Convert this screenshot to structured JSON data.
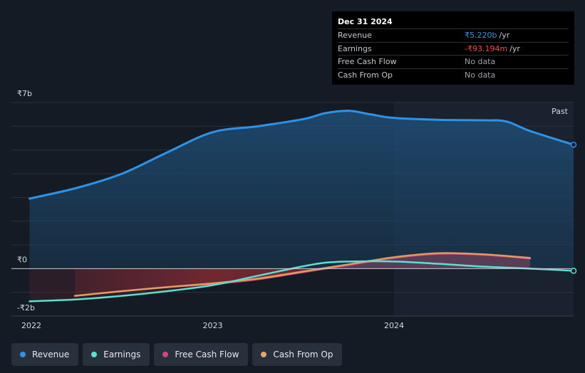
{
  "chart_data": {
    "type": "area",
    "title": "",
    "past_label": "Past",
    "x_ticks": [
      "2022",
      "2023",
      "2024"
    ],
    "y_ticks": [
      {
        "label": "₹7b",
        "value": 7
      },
      {
        "label": "₹0",
        "value": 0
      },
      {
        "label": "-₹2b",
        "value": -2
      }
    ],
    "ylim": [
      -2,
      7
    ],
    "xlim": [
      2021.89,
      2024.99
    ],
    "past_start": 2024.0,
    "series": [
      {
        "name": "Revenue",
        "color": "#2e93e6",
        "x": [
          2021.99,
          2022.25,
          2022.5,
          2022.75,
          2023.0,
          2023.25,
          2023.5,
          2023.62,
          2023.75,
          2023.87,
          2024.0,
          2024.25,
          2024.5,
          2024.62,
          2024.75,
          2024.99
        ],
        "values": [
          2.95,
          3.4,
          4.0,
          4.9,
          5.75,
          6.0,
          6.3,
          6.55,
          6.65,
          6.5,
          6.35,
          6.27,
          6.25,
          6.2,
          5.8,
          5.22
        ]
      },
      {
        "name": "Earnings",
        "color": "#5ce0cf",
        "x": [
          2021.99,
          2022.25,
          2022.5,
          2022.75,
          2023.0,
          2023.25,
          2023.5,
          2023.62,
          2023.75,
          2024.0,
          2024.25,
          2024.5,
          2024.75,
          2024.99
        ],
        "values": [
          -1.38,
          -1.3,
          -1.15,
          -0.95,
          -0.7,
          -0.3,
          0.1,
          0.25,
          0.3,
          0.3,
          0.2,
          0.08,
          0.0,
          -0.093
        ]
      },
      {
        "name": "Free Cash Flow",
        "color": "#d6457e",
        "x": [
          2022.24,
          2022.5,
          2022.75,
          2023.0,
          2023.25,
          2023.5,
          2023.75,
          2024.0,
          2024.25,
          2024.5,
          2024.75
        ],
        "values": [
          -1.15,
          -0.95,
          -0.78,
          -0.65,
          -0.45,
          -0.15,
          0.15,
          0.45,
          0.62,
          0.58,
          0.42
        ]
      },
      {
        "name": "Cash From Op",
        "color": "#e8a560",
        "x": [
          2022.24,
          2022.5,
          2022.75,
          2023.0,
          2023.25,
          2023.5,
          2023.75,
          2024.0,
          2024.25,
          2024.5,
          2024.75
        ],
        "values": [
          -1.15,
          -0.95,
          -0.78,
          -0.62,
          -0.42,
          -0.12,
          0.18,
          0.48,
          0.65,
          0.6,
          0.45
        ]
      }
    ]
  },
  "tooltip": {
    "date": "Dec 31 2024",
    "rows": [
      {
        "label": "Revenue",
        "value": "₹5.220b",
        "unit": "/yr",
        "color": "#2e93e6"
      },
      {
        "label": "Earnings",
        "value": "-₹93.194m",
        "unit": "/yr",
        "color": "#f0494b"
      },
      {
        "label": "Free Cash Flow",
        "value": "No data",
        "unit": "",
        "color": "#9ca1a8"
      },
      {
        "label": "Cash From Op",
        "value": "No data",
        "unit": "",
        "color": "#9ca1a8"
      }
    ]
  },
  "legend": [
    {
      "label": "Revenue",
      "color": "#2e93e6"
    },
    {
      "label": "Earnings",
      "color": "#5ce0cf"
    },
    {
      "label": "Free Cash Flow",
      "color": "#d6457e"
    },
    {
      "label": "Cash From Op",
      "color": "#e8a560"
    }
  ]
}
